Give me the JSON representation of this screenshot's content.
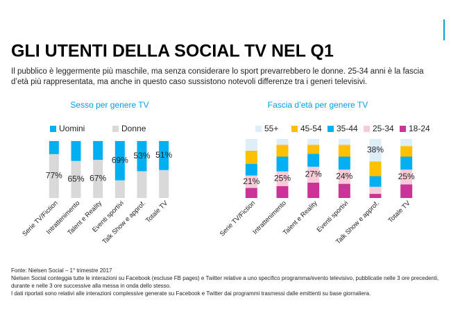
{
  "header": {
    "title": "GLI UTENTI DELLA SOCIAL TV NEL Q1",
    "subtitle": [
      "Il pubblico è leggermente più maschile, ma senza considerare lo sport prevarrebbero le donne. 25-34 anni è la fascia",
      "d’età più rappresentata, ma anche in questo caso sussistono notevoli differenze tra i generi televisivi."
    ]
  },
  "footnotes": [
    "Fonte: Nielsen Social – 1° trimestre  2017",
    "Nielsen Social conteggia tutte le interazioni su Facebook (escluse FB pages)  e Twitter relative a uno specifico programma/evento televisivo, pubblicatie nelle 3 ore precedenti,",
    "durante e nelle 3 ore successive alla messa in onda dello stesso.",
    "I dati riportati sono relativi alle interazioni complessive generate su Facebook e Twitter dai programmi trasmessi dalle emittenti  su base giornaliera."
  ],
  "chart_data": [
    {
      "type": "stacked_bar",
      "title": "Sesso per genere TV",
      "categories": [
        "Serie TV/Fiction",
        "Intrattenimento",
        "Talent e Reality",
        "Eventi sportivi",
        "Talk Show e approf.",
        "Totale TV"
      ],
      "ylim": [
        0,
        100
      ],
      "series": [
        {
          "name": "Uomini",
          "color": "#00b0f0",
          "values": [
            23,
            35,
            33,
            69,
            53,
            51
          ],
          "value_labels": [
            null,
            null,
            null,
            "69%",
            "53%",
            "51%"
          ]
        },
        {
          "name": "Donne",
          "color": "#d9d9d9",
          "values": [
            77,
            65,
            67,
            31,
            47,
            49
          ],
          "value_labels": [
            "77%",
            "65%",
            "67%",
            null,
            null,
            null
          ]
        }
      ]
    },
    {
      "type": "stacked_bar",
      "title": "Fascia d’età per genere TV",
      "categories": [
        "Serie TV/Fiction",
        "Intrattenimento",
        "Talent e Reality",
        "Eventi sportivi",
        "Talk Show e approf.",
        "Totale TV"
      ],
      "ylim": [
        0,
        100
      ],
      "series": [
        {
          "name": "55+",
          "color": "#ddeef8",
          "values": [
            20,
            10,
            10,
            10,
            38,
            12
          ],
          "value_labels": [
            null,
            null,
            null,
            null,
            "38%",
            null
          ]
        },
        {
          "name": "45-54",
          "color": "#ffc000",
          "values": [
            22,
            20,
            15,
            20,
            25,
            18
          ]
        },
        {
          "name": "35-44",
          "color": "#00b0f0",
          "values": [
            20,
            25,
            22,
            22,
            18,
            22
          ]
        },
        {
          "name": "25-34",
          "color": "#f8cbd8",
          "values": [
            21,
            25,
            27,
            24,
            12,
            25
          ],
          "value_labels": [
            "21%",
            "25%",
            "27%",
            "24%",
            null,
            "25%"
          ]
        },
        {
          "name": "18-24",
          "color": "#cc3399",
          "values": [
            17,
            20,
            26,
            24,
            7,
            23
          ]
        }
      ]
    }
  ]
}
